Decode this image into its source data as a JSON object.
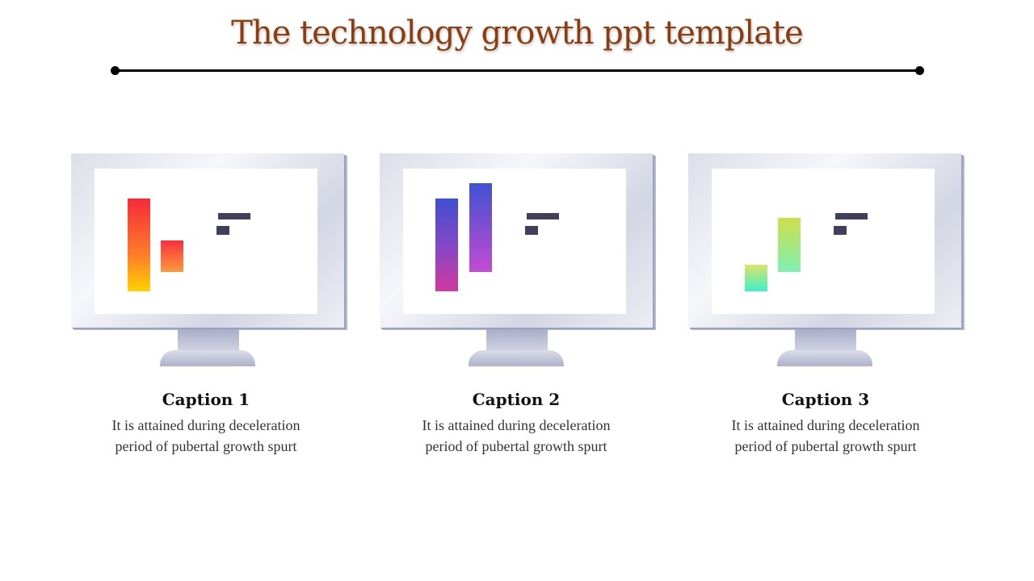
{
  "slide": {
    "title": "The technology growth ppt template"
  },
  "cards": [
    {
      "caption": "Caption 1",
      "text": "It is attained during deceleration period of pubertal growth spurt",
      "colors": [
        "#f52a3a",
        "#ffd200"
      ]
    },
    {
      "caption": "Caption 2",
      "text": "It is attained during deceleration period of pubertal growth spurt",
      "colors": [
        "#3f4fd0",
        "#c83bb0"
      ]
    },
    {
      "caption": "Caption 3",
      "text": "It is attained during deceleration period of pubertal growth spurt",
      "colors": [
        "#cde04a",
        "#3ff0c9"
      ]
    }
  ]
}
